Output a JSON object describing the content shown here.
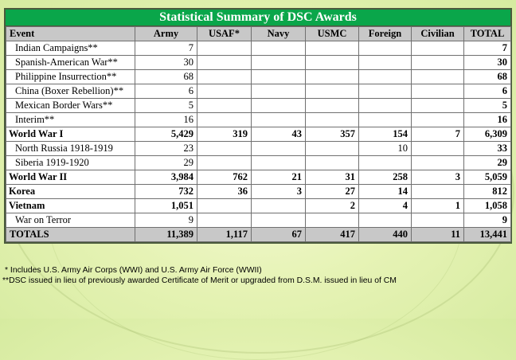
{
  "title": "Statistical Summary of DSC Awards",
  "columns": [
    "Event",
    "Army",
    "USAF*",
    "Navy",
    "USMC",
    "Foreign",
    "Civilian",
    "TOTAL"
  ],
  "rows": [
    {
      "event": "Indian Campaigns**",
      "army": "7",
      "usaf": "",
      "navy": "",
      "usmc": "",
      "foreign": "",
      "civilian": "",
      "total": "7"
    },
    {
      "event": "Spanish-American War**",
      "army": "30",
      "usaf": "",
      "navy": "",
      "usmc": "",
      "foreign": "",
      "civilian": "",
      "total": "30"
    },
    {
      "event": "Philippine Insurrection**",
      "army": "68",
      "usaf": "",
      "navy": "",
      "usmc": "",
      "foreign": "",
      "civilian": "",
      "total": "68"
    },
    {
      "event": "China (Boxer Rebellion)**",
      "army": "6",
      "usaf": "",
      "navy": "",
      "usmc": "",
      "foreign": "",
      "civilian": "",
      "total": "6"
    },
    {
      "event": "Mexican Border Wars**",
      "army": "5",
      "usaf": "",
      "navy": "",
      "usmc": "",
      "foreign": "",
      "civilian": "",
      "total": "5"
    },
    {
      "event": "Interim**",
      "army": "16",
      "usaf": "",
      "navy": "",
      "usmc": "",
      "foreign": "",
      "civilian": "",
      "total": "16"
    },
    {
      "event": "World War I",
      "army": "5,429",
      "usaf": "319",
      "navy": "43",
      "usmc": "357",
      "foreign": "154",
      "civilian": "7",
      "total": "6,309"
    },
    {
      "event": "North Russia 1918-1919",
      "army": "23",
      "usaf": "",
      "navy": "",
      "usmc": "",
      "foreign": "10",
      "civilian": "",
      "total": "33"
    },
    {
      "event": "Siberia 1919-1920",
      "army": "29",
      "usaf": "",
      "navy": "",
      "usmc": "",
      "foreign": "",
      "civilian": "",
      "total": "29"
    },
    {
      "event": "World War II",
      "army": "3,984",
      "usaf": "762",
      "navy": "21",
      "usmc": "31",
      "foreign": "258",
      "civilian": "3",
      "total": "5,059"
    },
    {
      "event": "Korea",
      "army": "732",
      "usaf": "36",
      "navy": "3",
      "usmc": "27",
      "foreign": "14",
      "civilian": "",
      "total": "812"
    },
    {
      "event": "Vietnam",
      "army": "1,051",
      "usaf": "",
      "navy": "",
      "usmc": "2",
      "foreign": "4",
      "civilian": "1",
      "total": "1,058"
    },
    {
      "event": "War on Terror",
      "army": "9",
      "usaf": "",
      "navy": "",
      "usmc": "",
      "foreign": "",
      "civilian": "",
      "total": "9"
    }
  ],
  "totals": {
    "event": "TOTALS",
    "army": "11,389",
    "usaf": "1,117",
    "navy": "67",
    "usmc": "417",
    "foreign": "440",
    "civilian": "11",
    "total": "13,441"
  },
  "footnotes": [
    "* Includes U.S. Army Air Corps (WWI) and U.S. Army Air Force (WWII)",
    "**DSC issued in lieu of previously awarded Certificate of Merit or upgraded from D.S.M. issued in lieu of CM"
  ]
}
